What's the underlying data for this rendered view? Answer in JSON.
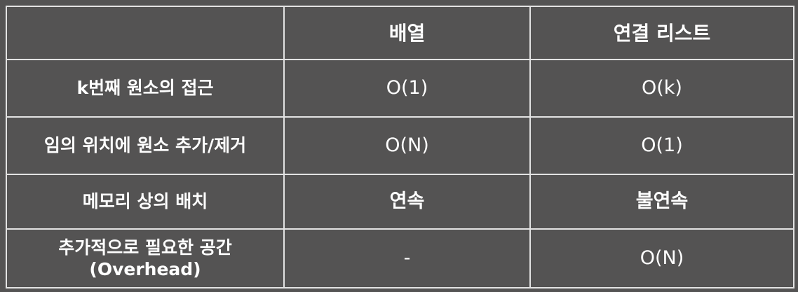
{
  "table": {
    "header": {
      "corner": "",
      "columns": [
        "배열",
        "연결 리스트"
      ]
    },
    "rows": [
      {
        "label": "k번째 원소의 접근",
        "label_line2": "",
        "array": "O(1)",
        "linked_list": "O(k)"
      },
      {
        "label": "임의 위치에 원소 추가/제거",
        "label_line2": "",
        "array": "O(N)",
        "linked_list": "O(1)"
      },
      {
        "label": "메모리 상의 배치",
        "label_line2": "",
        "array": "연속",
        "linked_list": "불연속"
      },
      {
        "label": "추가적으로 필요한 공간",
        "label_line2": "(Overhead)",
        "array": "-",
        "linked_list": "O(N)"
      }
    ]
  },
  "colors": {
    "background": "#545353",
    "text": "#ffffff",
    "border": "#e3e3e3"
  }
}
